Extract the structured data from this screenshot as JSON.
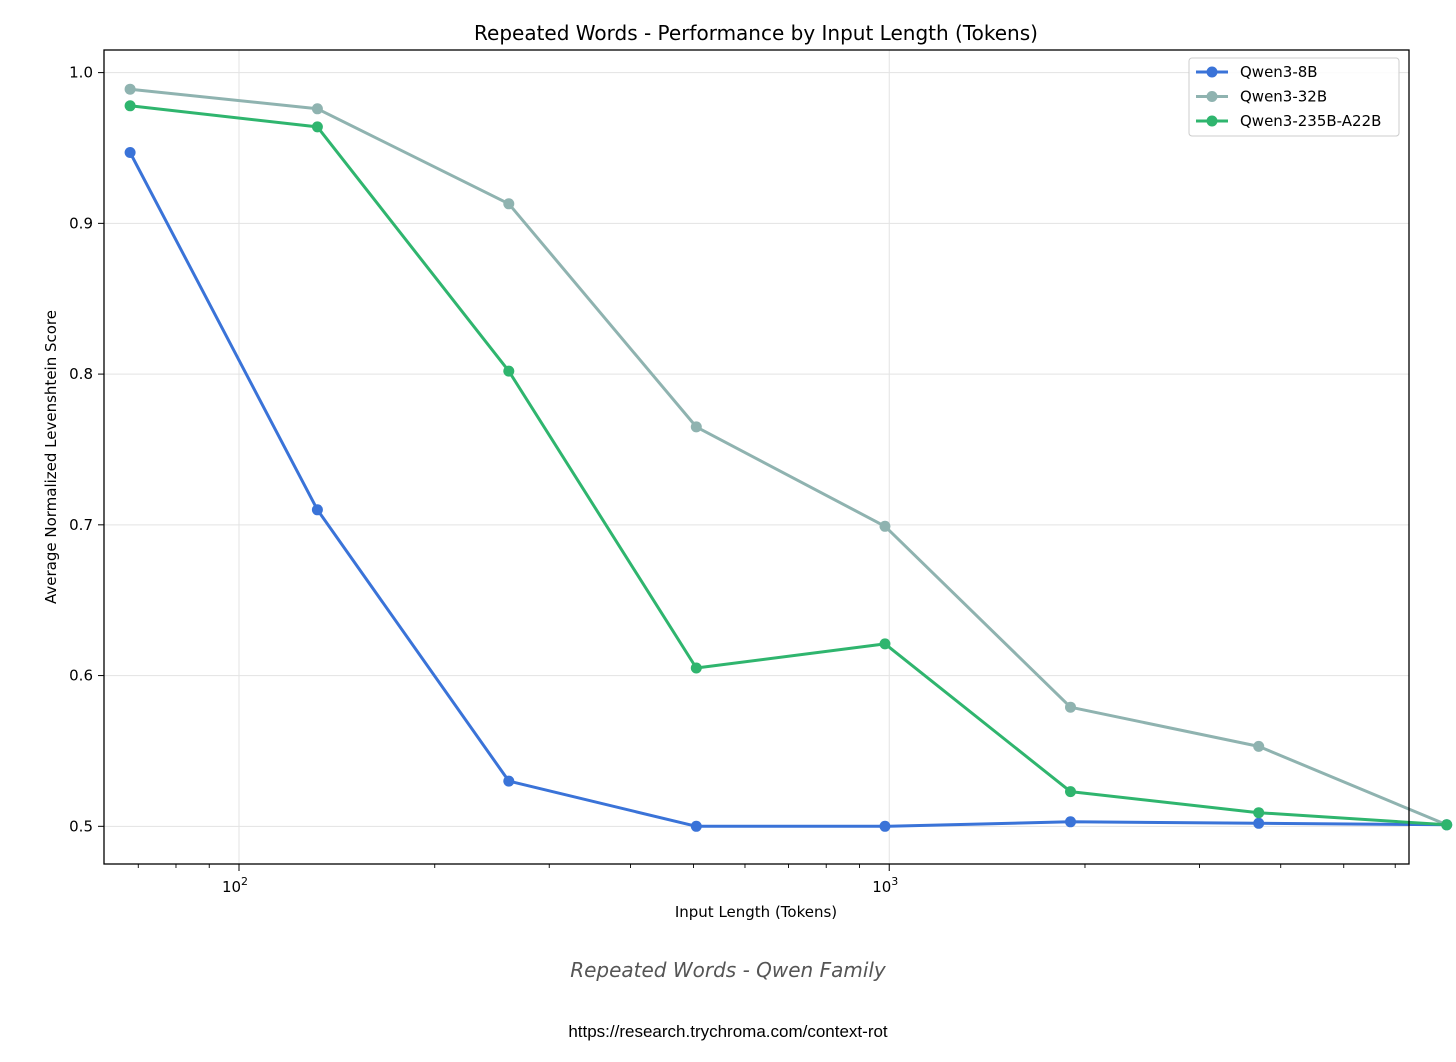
{
  "chart_data": {
    "type": "line",
    "title": "Repeated Words - Performance by Input Length (Tokens)",
    "xlabel": "Input Length (Tokens)",
    "ylabel": "Average Normalized Levenshtein Score",
    "xscale": "log",
    "xlim": [
      62,
      6300
    ],
    "ylim": [
      0.475,
      1.015
    ],
    "yticks": [
      0.5,
      0.6,
      0.7,
      0.8,
      0.9,
      1.0
    ],
    "ytick_labels": [
      "0.5",
      "0.6",
      "0.7",
      "0.8",
      "0.9",
      "1.0"
    ],
    "xticks": [
      {
        "value": 100,
        "base": "10",
        "exp": "2"
      },
      {
        "value": 1000,
        "base": "10",
        "exp": "3"
      }
    ],
    "x": [
      68,
      132,
      260,
      505,
      985,
      1900,
      3700,
      7200
    ],
    "grid": true,
    "legend_position": "top-right",
    "series": [
      {
        "name": "Qwen3-8B",
        "color": "#3a73d8",
        "values": [
          0.947,
          0.71,
          0.53,
          0.5,
          0.5,
          0.503,
          0.502,
          0.501
        ]
      },
      {
        "name": "Qwen3-32B",
        "color": "#8fb3b0",
        "values": [
          0.989,
          0.976,
          0.913,
          0.765,
          0.699,
          0.579,
          0.553,
          0.501
        ]
      },
      {
        "name": "Qwen3-235B-A22B",
        "color": "#2fb56e",
        "values": [
          0.978,
          0.964,
          0.802,
          0.605,
          0.621,
          0.523,
          0.509,
          0.501
        ]
      }
    ]
  },
  "caption": "Repeated Words - Qwen Family",
  "source_url": "https://research.trychroma.com/context-rot"
}
